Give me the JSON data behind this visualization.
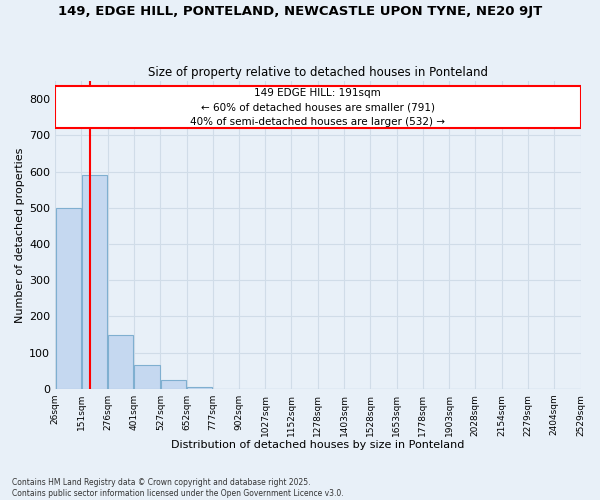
{
  "title": "149, EDGE HILL, PONTELAND, NEWCASTLE UPON TYNE, NE20 9JT",
  "subtitle": "Size of property relative to detached houses in Ponteland",
  "xlabel": "Distribution of detached houses by size in Ponteland",
  "ylabel": "Number of detached properties",
  "bar_values": [
    500,
    590,
    150,
    65,
    25,
    5,
    0,
    0,
    0,
    0,
    0,
    0,
    0,
    0,
    0,
    0,
    0,
    0,
    0,
    0
  ],
  "bar_edges": [
    26,
    151,
    276,
    401,
    527,
    652,
    777,
    902,
    1027,
    1152,
    1278,
    1403,
    1528,
    1653,
    1778,
    1903,
    2028,
    2154,
    2279,
    2404,
    2529
  ],
  "tick_labels": [
    "26sqm",
    "151sqm",
    "276sqm",
    "401sqm",
    "527sqm",
    "652sqm",
    "777sqm",
    "902sqm",
    "1027sqm",
    "1152sqm",
    "1278sqm",
    "1403sqm",
    "1528sqm",
    "1653sqm",
    "1778sqm",
    "1903sqm",
    "2028sqm",
    "2154sqm",
    "2279sqm",
    "2404sqm",
    "2529sqm"
  ],
  "bar_color": "#c5d8f0",
  "bar_edge_color": "#7fafd0",
  "red_line_x": 191,
  "annotation_title": "149 EDGE HILL: 191sqm",
  "annotation_line1": "← 60% of detached houses are smaller (791)",
  "annotation_line2": "40% of semi-detached houses are larger (532) →",
  "ylim": [
    0,
    850
  ],
  "yticks": [
    0,
    100,
    200,
    300,
    400,
    500,
    600,
    700,
    800
  ],
  "background_color": "#e8f0f8",
  "grid_color": "#d0dce8",
  "footer_line1": "Contains HM Land Registry data © Crown copyright and database right 2025.",
  "footer_line2": "Contains public sector information licensed under the Open Government Licence v3.0."
}
